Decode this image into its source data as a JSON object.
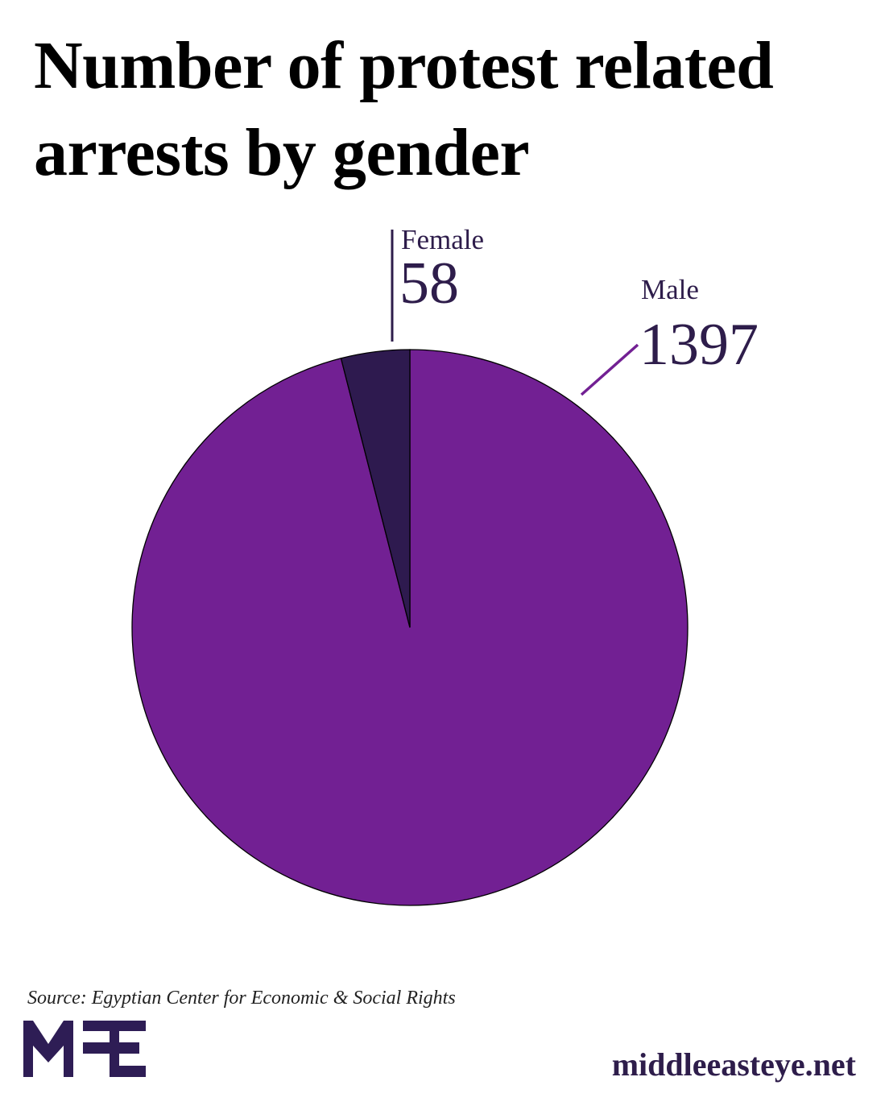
{
  "chart_data": {
    "type": "pie",
    "title": "Number of protest related arrests by gender",
    "slices": [
      {
        "label": "Male",
        "value": 1397,
        "color": "#722093"
      },
      {
        "label": "Female",
        "value": 58,
        "color": "#2e1a4f"
      }
    ],
    "source": "Source: Egyptian Center for Economic & Social Rights"
  },
  "branding": {
    "logo": "MEE",
    "site": "middleeasteye.net",
    "color": "#2e1d55"
  }
}
